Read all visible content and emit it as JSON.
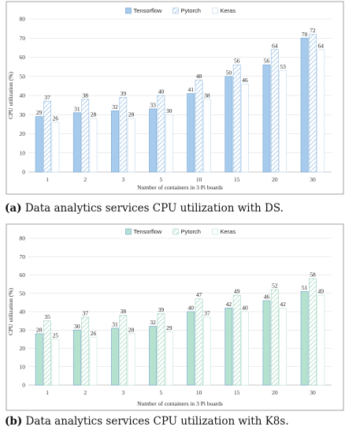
{
  "chart_data": [
    {
      "type": "bar",
      "ylabel": "CPU utilization (%)",
      "xlabel": "Number of containers in 3 Pi boards",
      "categories": [
        "1",
        "2",
        "3",
        "5",
        "10",
        "15",
        "20",
        "30"
      ],
      "ylim": [
        0,
        80
      ],
      "yticks": [
        0,
        10,
        20,
        30,
        40,
        50,
        60,
        70,
        80
      ],
      "grid": true,
      "legend_position": "top-center",
      "series": [
        {
          "name": "Tensorflow",
          "values": [
            29,
            31,
            32,
            33,
            41,
            50,
            56,
            70
          ],
          "color": "#a7cbed",
          "pattern": "solid"
        },
        {
          "name": "Pytorch",
          "values": [
            37,
            38,
            39,
            40,
            48,
            56,
            64,
            72
          ],
          "color": "#9fc4e6",
          "pattern": "hatch"
        },
        {
          "name": "Keras",
          "values": [
            26,
            28,
            28,
            30,
            38,
            46,
            53,
            64
          ],
          "color": "#c9dcef",
          "pattern": "empty"
        }
      ],
      "caption_label": "(a)",
      "caption_text": "Data analytics services CPU utilization with DS."
    },
    {
      "type": "bar",
      "ylabel": "CPU utilization (%)",
      "xlabel": "Number of containers in 3 Pi boards",
      "categories": [
        "1",
        "2",
        "3",
        "5",
        "10",
        "15",
        "20",
        "30"
      ],
      "ylim": [
        0,
        80
      ],
      "yticks": [
        0,
        10,
        20,
        30,
        40,
        50,
        60,
        70,
        80
      ],
      "grid": true,
      "legend_position": "top-center",
      "series": [
        {
          "name": "Tensorflow",
          "values": [
            28,
            30,
            31,
            32,
            40,
            42,
            46,
            51
          ],
          "color": "#b5e2cf",
          "pattern": "solid"
        },
        {
          "name": "Pytorch",
          "values": [
            35,
            37,
            38,
            39,
            47,
            49,
            52,
            58
          ],
          "color": "#a9d9c4",
          "pattern": "hatch"
        },
        {
          "name": "Keras",
          "values": [
            25,
            26,
            28,
            29,
            37,
            40,
            42,
            49
          ],
          "color": "#c8e8da",
          "pattern": "empty"
        }
      ],
      "caption_label": "(b)",
      "caption_text": "Data analytics services CPU utilization with K8s."
    }
  ]
}
